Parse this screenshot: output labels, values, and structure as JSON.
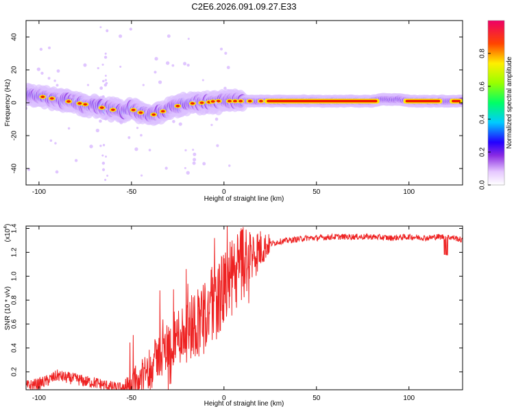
{
  "chart_data": [
    {
      "type": "heatmap",
      "title": "C2E6.2026.091.09.27.E33",
      "xlabel": "Height of straight line (km)",
      "ylabel": "Frequency (Hz)",
      "xlim": [
        -107,
        129
      ],
      "ylim": [
        -50,
        50
      ],
      "xticks": [
        -100,
        -50,
        0,
        50,
        100
      ],
      "yticks": [
        -40,
        -20,
        0,
        20,
        40
      ],
      "ridge": {
        "x": [
          -107,
          -100,
          -90,
          -80,
          -70,
          -62,
          -55,
          -50,
          -45,
          -40,
          -35,
          -30,
          -25,
          -20,
          -15,
          -10,
          -5,
          0,
          5,
          10,
          20,
          30,
          40,
          50,
          60,
          70,
          80,
          85,
          90,
          95,
          100,
          110,
          120,
          129
        ],
        "y": [
          5,
          4,
          2,
          0,
          -2,
          -4,
          -5,
          -4,
          -6,
          -8,
          -6,
          -4,
          -2,
          -1,
          0,
          0,
          1,
          1,
          1,
          1,
          1,
          1,
          1,
          1,
          1,
          1,
          1,
          2,
          2,
          2,
          1,
          1,
          1,
          1
        ]
      },
      "colorbar": {
        "label": "Normalized spectral amplitude",
        "range": [
          0,
          1
        ],
        "ticks": [
          "0.0",
          "0.2",
          "0.4",
          "0.6",
          "0.8"
        ]
      }
    },
    {
      "type": "line",
      "xlabel": "Height of straight line (km)",
      "ylabel": "SNR (10 * v/v)",
      "yscale_label": "(x10",
      "yscale_exp": "4",
      "xlim": [
        -107,
        129
      ],
      "ylim": [
        0.05,
        1.42
      ],
      "xticks": [
        -100,
        -50,
        0,
        50,
        100
      ],
      "yticks": [
        "0.2",
        "0.4",
        "0.6",
        "0.8",
        "1.0",
        "1.2",
        "1.4"
      ],
      "series": [
        {
          "name": "SNR",
          "color": "#ee2222",
          "x": [
            -107,
            -100,
            -95,
            -90,
            -85,
            -80,
            -75,
            -70,
            -65,
            -60,
            -55,
            -50,
            -45,
            -40,
            -35,
            -30,
            -25,
            -20,
            -15,
            -10,
            -5,
            0,
            5,
            10,
            15,
            20,
            25,
            30,
            35,
            40,
            45,
            50,
            60,
            70,
            80,
            90,
            100,
            110,
            115,
            120,
            125,
            129
          ],
          "y": [
            0.08,
            0.1,
            0.13,
            0.17,
            0.15,
            0.14,
            0.12,
            0.11,
            0.09,
            0.07,
            0.06,
            0.08,
            0.15,
            0.25,
            0.34,
            0.42,
            0.5,
            0.55,
            0.62,
            0.68,
            0.78,
            0.88,
            1.0,
            1.1,
            1.18,
            1.23,
            1.27,
            1.29,
            1.3,
            1.31,
            1.32,
            1.32,
            1.33,
            1.33,
            1.33,
            1.32,
            1.33,
            1.32,
            1.33,
            1.33,
            1.32,
            1.3
          ]
        }
      ]
    }
  ]
}
